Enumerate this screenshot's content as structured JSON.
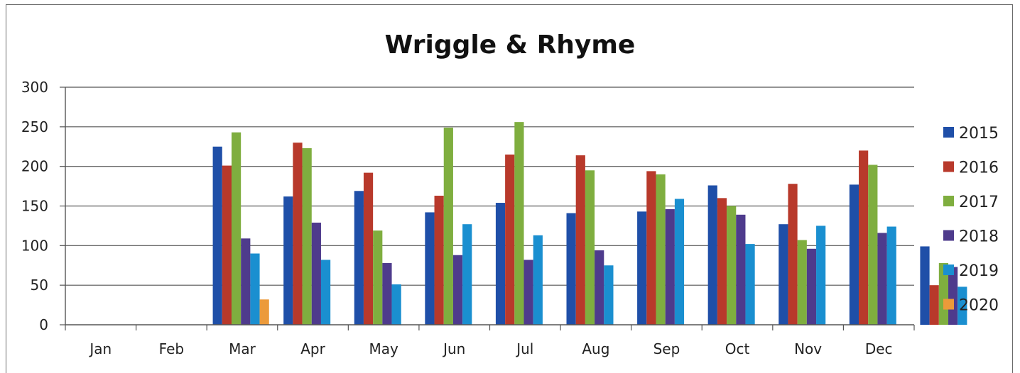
{
  "chart_data": {
    "type": "bar",
    "title": "Wriggle & Rhyme",
    "xlabel": "",
    "ylabel": "",
    "categories": [
      "Jan",
      "Feb",
      "Mar",
      "Apr",
      "May",
      "Jun",
      "Jul",
      "Aug",
      "Sep",
      "Oct",
      "Nov",
      "Dec"
    ],
    "ylim": [
      0,
      300
    ],
    "yticks": [
      0,
      50,
      100,
      150,
      200,
      250,
      300
    ],
    "grid": true,
    "legend_position": "right",
    "series": [
      {
        "name": "2015",
        "color": "#1f4fa8",
        "values": [
          null,
          225,
          162,
          169,
          142,
          154,
          141,
          143,
          176,
          127,
          177,
          99
        ]
      },
      {
        "name": "2016",
        "color": "#b8392b",
        "values": [
          null,
          201,
          230,
          192,
          163,
          215,
          214,
          194,
          160,
          178,
          220,
          50
        ]
      },
      {
        "name": "2017",
        "color": "#7fae3f",
        "values": [
          null,
          243,
          223,
          119,
          249,
          256,
          195,
          190,
          150,
          107,
          202,
          78
        ]
      },
      {
        "name": "2018",
        "color": "#4e3b8c",
        "values": [
          null,
          109,
          129,
          78,
          88,
          82,
          94,
          146,
          139,
          96,
          116,
          73
        ]
      },
      {
        "name": "2019",
        "color": "#1a8fd0",
        "values": [
          null,
          90,
          82,
          51,
          127,
          113,
          75,
          159,
          102,
          125,
          124,
          48
        ]
      },
      {
        "name": "2020",
        "color": "#ec9a3a",
        "values": [
          null,
          32,
          null,
          null,
          null,
          null,
          null,
          null,
          null,
          null,
          null,
          null
        ]
      }
    ]
  }
}
